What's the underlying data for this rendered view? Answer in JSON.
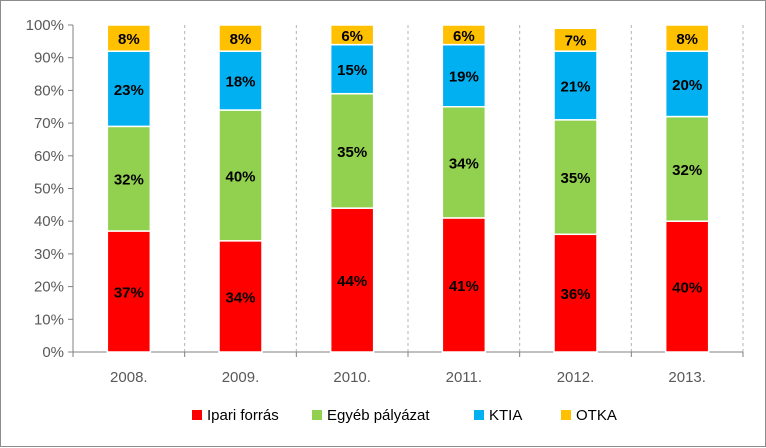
{
  "chart_data": {
    "type": "bar",
    "stacked": true,
    "categories": [
      "2008.",
      "2009.",
      "2010.",
      "2011.",
      "2012.",
      "2013."
    ],
    "series": [
      {
        "name": "Ipari forrás",
        "color": "#ff0000",
        "values": [
          37,
          34,
          44,
          41,
          36,
          40
        ],
        "labels": [
          "37%",
          "34%",
          "44%",
          "41%",
          "36%",
          "40%"
        ]
      },
      {
        "name": "Egyéb pályázat",
        "color": "#92d050",
        "values": [
          32,
          40,
          35,
          34,
          35,
          32
        ],
        "labels": [
          "32%",
          "40%",
          "35%",
          "34%",
          "35%",
          "32%"
        ]
      },
      {
        "name": "KTIA",
        "color": "#00b0f0",
        "values": [
          23,
          18,
          15,
          19,
          21,
          20
        ],
        "labels": [
          "23%",
          "18%",
          "15%",
          "19%",
          "21%",
          "20%"
        ]
      },
      {
        "name": "OTKA",
        "color": "#ffc000",
        "values": [
          8,
          8,
          6,
          6,
          7,
          8
        ],
        "labels": [
          "8%",
          "8%",
          "6%",
          "6%",
          "7%",
          "8%"
        ]
      }
    ],
    "ylim": [
      0,
      100
    ],
    "yticks": [
      "0%",
      "10%",
      "20%",
      "30%",
      "40%",
      "50%",
      "60%",
      "70%",
      "80%",
      "90%",
      "100%"
    ],
    "grid": "vertical dashed",
    "legend": "bottom"
  }
}
